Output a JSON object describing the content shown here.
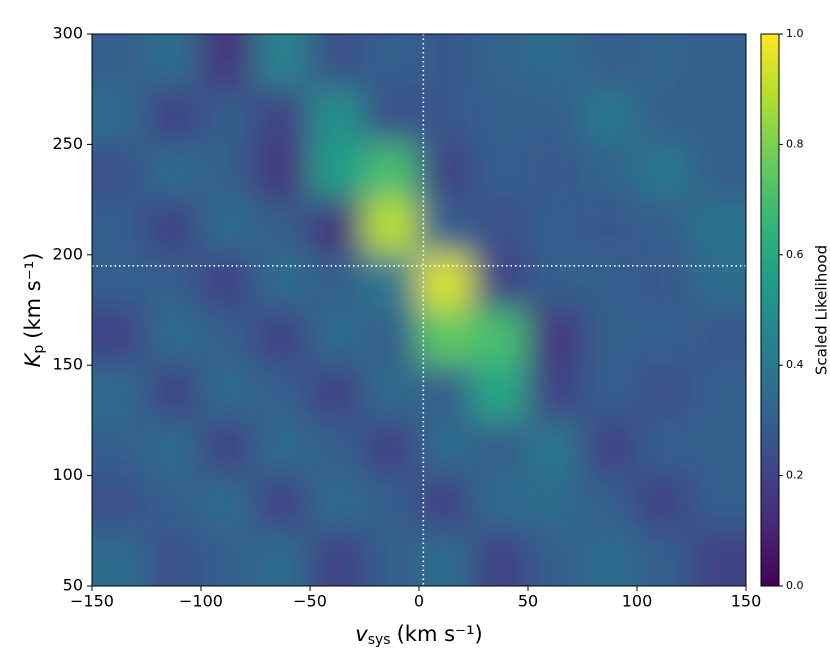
{
  "chart_data": {
    "type": "heatmap",
    "colormap": "viridis",
    "xlabel": {
      "symbol": "v",
      "subscript": "sys",
      "unit": "(km s⁻¹)"
    },
    "ylabel": {
      "symbol": "K",
      "subscript": "p",
      "unit": "(km s⁻¹)"
    },
    "colorbar_label": "Scaled Likelihood",
    "xlim": [
      -150,
      150
    ],
    "ylim": [
      50,
      300
    ],
    "xticks": [
      {
        "value": -150,
        "label": "−150"
      },
      {
        "value": -100,
        "label": "−100"
      },
      {
        "value": -50,
        "label": "−50"
      },
      0,
      50,
      100,
      150
    ],
    "yticks": [
      50,
      100,
      150,
      200,
      250,
      300
    ],
    "clim": [
      0,
      1
    ],
    "cticks": [
      {
        "value": 0,
        "label": "0.0"
      },
      0.2,
      0.4,
      0.6,
      0.8,
      {
        "value": 1,
        "label": "1.0"
      }
    ],
    "x": [
      -137.5,
      -112.5,
      -87.5,
      -62.5,
      -37.5,
      -12.5,
      12.5,
      37.5,
      62.5,
      87.5,
      112.5,
      137.5
    ],
    "y": [
      287.5,
      262.5,
      237.5,
      212.5,
      187.5,
      162.5,
      137.5,
      112.5,
      87.5,
      62.5
    ],
    "z": [
      [
        0.3,
        0.35,
        0.15,
        0.45,
        0.25,
        0.3,
        0.28,
        0.32,
        0.35,
        0.3,
        0.32,
        0.3
      ],
      [
        0.35,
        0.2,
        0.3,
        0.2,
        0.5,
        0.25,
        0.28,
        0.3,
        0.3,
        0.4,
        0.3,
        0.3
      ],
      [
        0.25,
        0.35,
        0.3,
        0.15,
        0.55,
        0.7,
        0.2,
        0.3,
        0.28,
        0.32,
        0.4,
        0.3
      ],
      [
        0.3,
        0.2,
        0.35,
        0.3,
        0.15,
        0.9,
        0.3,
        0.25,
        0.3,
        0.28,
        0.3,
        0.38
      ],
      [
        0.3,
        0.3,
        0.2,
        0.35,
        0.3,
        0.4,
        0.95,
        0.2,
        0.3,
        0.3,
        0.28,
        0.35
      ],
      [
        0.2,
        0.35,
        0.3,
        0.2,
        0.35,
        0.3,
        0.75,
        0.7,
        0.15,
        0.3,
        0.3,
        0.28
      ],
      [
        0.35,
        0.2,
        0.35,
        0.3,
        0.2,
        0.35,
        0.3,
        0.6,
        0.2,
        0.3,
        0.25,
        0.3
      ],
      [
        0.3,
        0.35,
        0.2,
        0.35,
        0.3,
        0.2,
        0.35,
        0.3,
        0.4,
        0.2,
        0.3,
        0.3
      ],
      [
        0.25,
        0.3,
        0.35,
        0.2,
        0.35,
        0.3,
        0.2,
        0.35,
        0.35,
        0.3,
        0.2,
        0.3
      ],
      [
        0.35,
        0.25,
        0.3,
        0.35,
        0.2,
        0.3,
        0.35,
        0.2,
        0.3,
        0.35,
        0.3,
        0.2
      ]
    ],
    "crosshair": {
      "x": 2,
      "y": 195
    }
  }
}
